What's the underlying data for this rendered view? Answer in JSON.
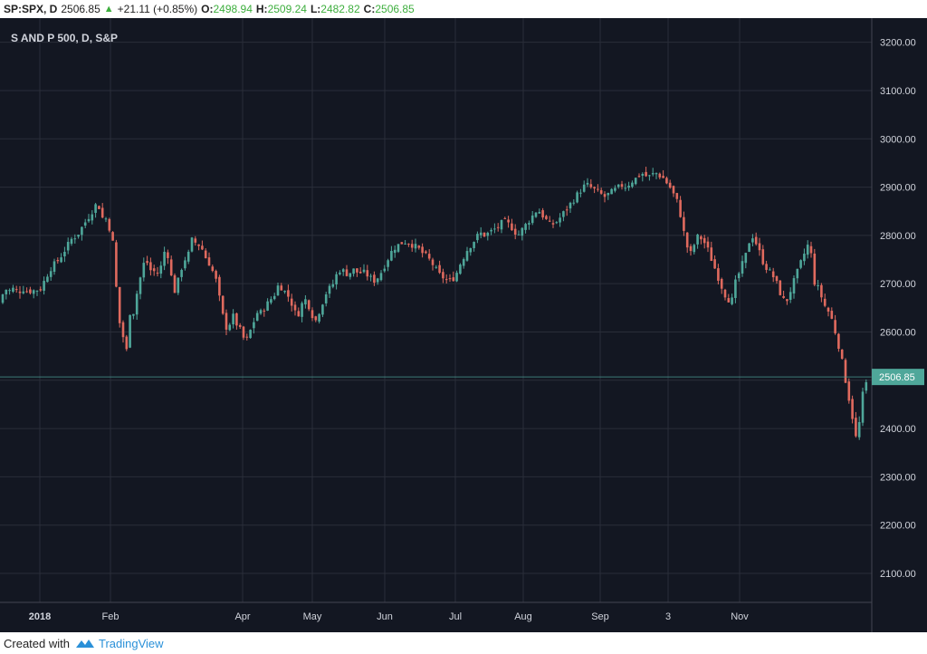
{
  "header": {
    "symbol": "SP:SPX, D",
    "price": "2506.85",
    "change": "+21.11 (+0.85%)",
    "o_label": "O:",
    "o_value": "2498.94",
    "h_label": "H:",
    "h_value": "2509.24",
    "l_label": "L:",
    "l_value": "2482.82",
    "c_label": "C:",
    "c_value": "2506.85"
  },
  "footer": {
    "created_with": "Created with",
    "brand": "TradingView"
  },
  "colors": {
    "background": "#131722",
    "up": "#4fa79a",
    "down": "#e06a5e",
    "grid": "#2a2e39",
    "axis_text": "#d1d4dc",
    "price_tag": "#4fa79a"
  },
  "chart_data": {
    "type": "candlestick",
    "title": "S AND P 500, D, S&P",
    "ylim": [
      2040,
      3250
    ],
    "yticks": [
      3200,
      3100,
      3000,
      2900,
      2800,
      2700,
      2600,
      2500,
      2400,
      2300,
      2200,
      2100
    ],
    "ytick_labels": [
      "3200.00",
      "3100.00",
      "3000.00",
      "2900.00",
      "2800.00",
      "2700.00",
      "2600.00",
      "2400.00",
      "2300.00",
      "2200.00",
      "2100.00"
    ],
    "x_labels": [
      "2018",
      "Feb",
      "Apr",
      "May",
      "Jun",
      "Jul",
      "Aug",
      "Sep",
      "3",
      "Nov"
    ],
    "last_price": 2506.85,
    "last_price_label": "2506.85",
    "close_path": [
      [
        0,
        2660
      ],
      [
        5,
        2690
      ],
      [
        10,
        2685
      ],
      [
        15,
        2690
      ],
      [
        20,
        2682
      ],
      [
        25,
        2690
      ],
      [
        30,
        2685
      ],
      [
        35,
        2685
      ],
      [
        40,
        2687
      ],
      [
        45,
        2690
      ],
      [
        50,
        2710
      ],
      [
        55,
        2730
      ],
      [
        60,
        2740
      ],
      [
        65,
        2750
      ],
      [
        70,
        2765
      ],
      [
        75,
        2780
      ],
      [
        80,
        2795
      ],
      [
        85,
        2800
      ],
      [
        90,
        2815
      ],
      [
        95,
        2830
      ],
      [
        100,
        2845
      ],
      [
        105,
        2860
      ],
      [
        108,
        2872
      ],
      [
        112,
        2835
      ],
      [
        116,
        2840
      ],
      [
        120,
        2820
      ],
      [
        124,
        2800
      ],
      [
        128,
        2700
      ],
      [
        132,
        2620
      ],
      [
        136,
        2590
      ],
      [
        140,
        2560
      ],
      [
        144,
        2650
      ],
      [
        148,
        2640
      ],
      [
        152,
        2690
      ],
      [
        156,
        2720
      ],
      [
        160,
        2750
      ],
      [
        164,
        2740
      ],
      [
        168,
        2720
      ],
      [
        172,
        2730
      ],
      [
        176,
        2715
      ],
      [
        180,
        2760
      ],
      [
        184,
        2775
      ],
      [
        188,
        2730
      ],
      [
        192,
        2680
      ],
      [
        196,
        2700
      ],
      [
        200,
        2730
      ],
      [
        204,
        2750
      ],
      [
        208,
        2760
      ],
      [
        212,
        2790
      ],
      [
        216,
        2785
      ],
      [
        220,
        2780
      ],
      [
        224,
        2770
      ],
      [
        228,
        2750
      ],
      [
        232,
        2740
      ],
      [
        236,
        2720
      ],
      [
        240,
        2700
      ],
      [
        244,
        2650
      ],
      [
        248,
        2620
      ],
      [
        252,
        2600
      ],
      [
        256,
        2640
      ],
      [
        260,
        2620
      ],
      [
        264,
        2610
      ],
      [
        268,
        2590
      ],
      [
        272,
        2580
      ],
      [
        276,
        2600
      ],
      [
        280,
        2620
      ],
      [
        284,
        2640
      ],
      [
        288,
        2640
      ],
      [
        292,
        2650
      ],
      [
        296,
        2660
      ],
      [
        300,
        2670
      ],
      [
        304,
        2680
      ],
      [
        308,
        2700
      ],
      [
        312,
        2690
      ],
      [
        316,
        2680
      ],
      [
        320,
        2670
      ],
      [
        324,
        2650
      ],
      [
        328,
        2630
      ],
      [
        332,
        2650
      ],
      [
        336,
        2670
      ],
      [
        340,
        2660
      ],
      [
        344,
        2640
      ],
      [
        348,
        2620
      ],
      [
        352,
        2640
      ],
      [
        356,
        2660
      ],
      [
        360,
        2680
      ],
      [
        364,
        2690
      ],
      [
        368,
        2700
      ],
      [
        372,
        2720
      ],
      [
        376,
        2730
      ],
      [
        380,
        2725
      ],
      [
        384,
        2720
      ],
      [
        388,
        2725
      ],
      [
        392,
        2730
      ],
      [
        396,
        2720
      ],
      [
        400,
        2725
      ],
      [
        404,
        2720
      ],
      [
        408,
        2715
      ],
      [
        412,
        2705
      ],
      [
        416,
        2710
      ],
      [
        420,
        2720
      ],
      [
        424,
        2735
      ],
      [
        428,
        2750
      ],
      [
        432,
        2765
      ],
      [
        436,
        2775
      ],
      [
        440,
        2780
      ],
      [
        444,
        2785
      ],
      [
        448,
        2787
      ],
      [
        452,
        2785
      ],
      [
        456,
        2780
      ],
      [
        460,
        2775
      ],
      [
        464,
        2770
      ],
      [
        468,
        2760
      ],
      [
        472,
        2755
      ],
      [
        476,
        2745
      ],
      [
        480,
        2735
      ],
      [
        484,
        2720
      ],
      [
        488,
        2715
      ],
      [
        492,
        2710
      ],
      [
        496,
        2705
      ],
      [
        500,
        2710
      ],
      [
        504,
        2720
      ],
      [
        508,
        2740
      ],
      [
        512,
        2755
      ],
      [
        516,
        2770
      ],
      [
        520,
        2780
      ],
      [
        524,
        2790
      ],
      [
        528,
        2800
      ],
      [
        532,
        2805
      ],
      [
        536,
        2800
      ],
      [
        540,
        2805
      ],
      [
        544,
        2810
      ],
      [
        548,
        2815
      ],
      [
        552,
        2820
      ],
      [
        556,
        2830
      ],
      [
        560,
        2825
      ],
      [
        564,
        2820
      ],
      [
        568,
        2810
      ],
      [
        572,
        2800
      ],
      [
        576,
        2810
      ],
      [
        580,
        2820
      ],
      [
        584,
        2830
      ],
      [
        588,
        2840
      ],
      [
        592,
        2850
      ],
      [
        596,
        2850
      ],
      [
        600,
        2840
      ],
      [
        604,
        2830
      ],
      [
        608,
        2820
      ],
      [
        612,
        2825
      ],
      [
        616,
        2830
      ],
      [
        620,
        2840
      ],
      [
        624,
        2850
      ],
      [
        628,
        2860
      ],
      [
        632,
        2870
      ],
      [
        636,
        2880
      ],
      [
        640,
        2890
      ],
      [
        644,
        2900
      ],
      [
        648,
        2905
      ],
      [
        652,
        2900
      ],
      [
        656,
        2895
      ],
      [
        660,
        2890
      ],
      [
        664,
        2885
      ],
      [
        668,
        2880
      ],
      [
        672,
        2885
      ],
      [
        676,
        2890
      ],
      [
        680,
        2895
      ],
      [
        684,
        2900
      ],
      [
        688,
        2905
      ],
      [
        692,
        2900
      ],
      [
        696,
        2910
      ],
      [
        700,
        2915
      ],
      [
        704,
        2920
      ],
      [
        708,
        2930
      ],
      [
        712,
        2925
      ],
      [
        716,
        2920
      ],
      [
        720,
        2925
      ],
      [
        724,
        2930
      ],
      [
        728,
        2925
      ],
      [
        732,
        2920
      ],
      [
        736,
        2910
      ],
      [
        740,
        2900
      ],
      [
        744,
        2885
      ],
      [
        748,
        2870
      ],
      [
        752,
        2840
      ],
      [
        756,
        2800
      ],
      [
        760,
        2770
      ],
      [
        764,
        2760
      ],
      [
        768,
        2790
      ],
      [
        772,
        2800
      ],
      [
        776,
        2790
      ],
      [
        780,
        2780
      ],
      [
        784,
        2760
      ],
      [
        788,
        2740
      ],
      [
        792,
        2720
      ],
      [
        796,
        2700
      ],
      [
        800,
        2680
      ],
      [
        804,
        2670
      ],
      [
        808,
        2660
      ],
      [
        812,
        2700
      ],
      [
        816,
        2720
      ],
      [
        820,
        2740
      ],
      [
        824,
        2760
      ],
      [
        828,
        2790
      ],
      [
        832,
        2800
      ],
      [
        836,
        2780
      ],
      [
        840,
        2760
      ],
      [
        844,
        2740
      ],
      [
        848,
        2730
      ],
      [
        852,
        2720
      ],
      [
        856,
        2710
      ],
      [
        860,
        2690
      ],
      [
        864,
        2670
      ],
      [
        868,
        2660
      ],
      [
        872,
        2680
      ],
      [
        876,
        2700
      ],
      [
        880,
        2720
      ],
      [
        884,
        2740
      ],
      [
        888,
        2760
      ],
      [
        892,
        2780
      ],
      [
        896,
        2760
      ],
      [
        900,
        2700
      ],
      [
        904,
        2690
      ],
      [
        908,
        2670
      ],
      [
        912,
        2650
      ],
      [
        916,
        2640
      ],
      [
        920,
        2620
      ],
      [
        924,
        2590
      ],
      [
        928,
        2560
      ],
      [
        932,
        2520
      ],
      [
        936,
        2480
      ],
      [
        940,
        2440
      ],
      [
        944,
        2400
      ],
      [
        947,
        2360
      ],
      [
        950,
        2430
      ],
      [
        953,
        2470
      ],
      [
        956,
        2490
      ],
      [
        960,
        2506
      ]
    ]
  }
}
